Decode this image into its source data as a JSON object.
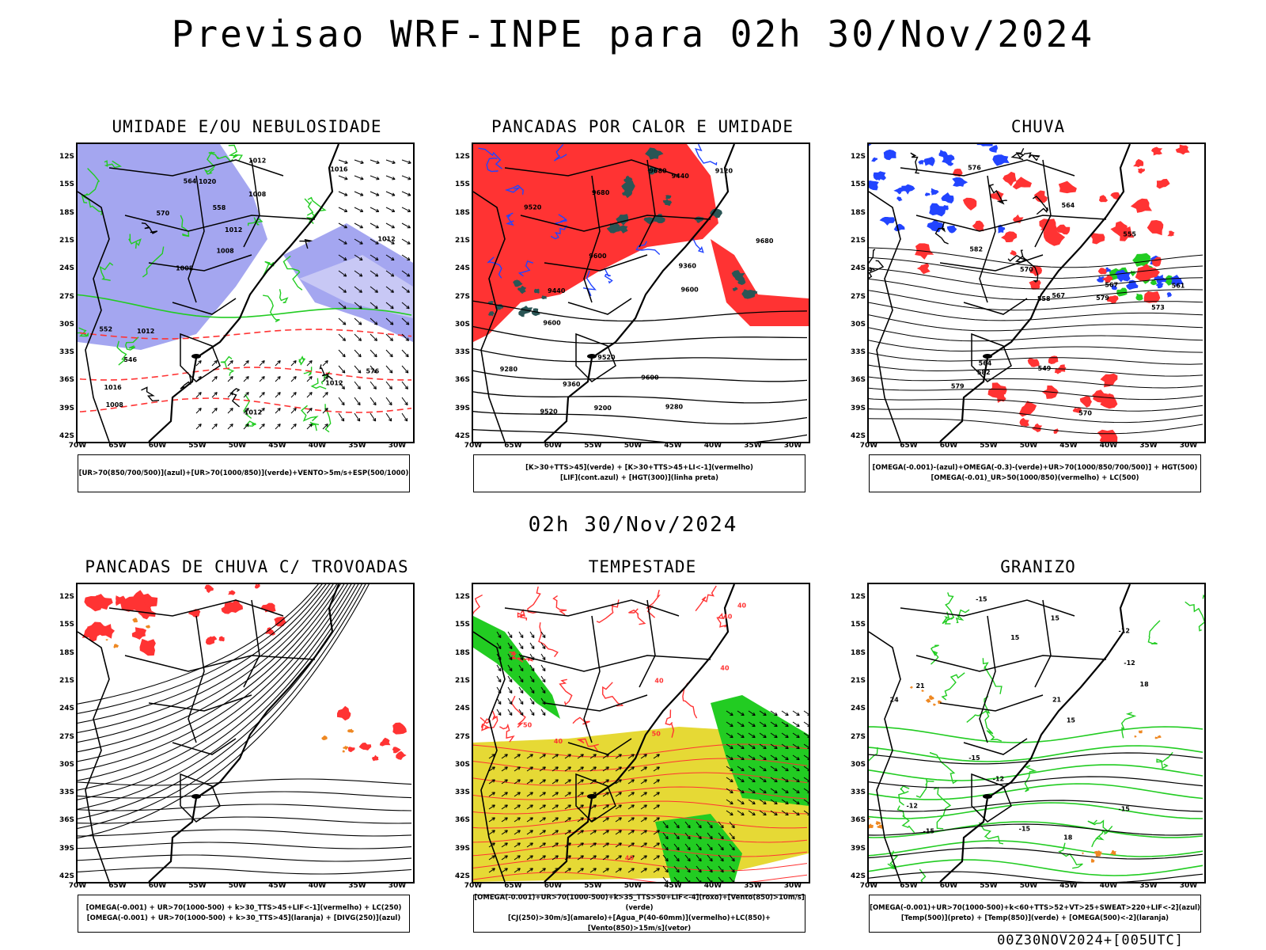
{
  "page": {
    "title": "Previsao WRF-INPE  para 02h 30/Nov/2024",
    "subtitle": "02h 30/Nov/2024",
    "footer": "00Z30NOV2024+[005UTC]"
  },
  "axes": {
    "lat_labels": [
      "12S",
      "15S",
      "18S",
      "21S",
      "24S",
      "27S",
      "30S",
      "33S",
      "36S",
      "39S",
      "42S"
    ],
    "lon_labels": [
      "70W",
      "65W",
      "60W",
      "55W",
      "50W",
      "45W",
      "40W",
      "35W",
      "30W"
    ]
  },
  "colors": {
    "green": "#22cc22",
    "red": "#ff3333",
    "blue": "#2244ff",
    "lavender": "#a4a6f0",
    "darkteal": "#2a5555",
    "yellow": "#e6d935",
    "orange": "#ee8822",
    "black": "#000000"
  },
  "panels": [
    {
      "title": "UMIDADE E/OU NEBULOSIDADE",
      "legend": [
        "[UR>70(850/700/500)](azul)+[UR>70(1000/850)](verde)+VENTO>5m/s+ESP(500/1000)"
      ],
      "contour_labels": [
        "1012",
        "1012",
        "1012",
        "1020",
        "1012",
        "1008",
        "1008",
        "1012",
        "1012",
        "1016",
        "1008",
        "1008",
        "1016",
        "564",
        "558",
        "552",
        "570",
        "576",
        "546"
      ]
    },
    {
      "title": "PANCADAS POR CALOR E UMIDADE",
      "legend": [
        "[K>30+TTS>45](verde) + [K>30+TTS>45+LI<-1](vermelho)",
        "[LIF](cont.azul) + [HGT(300)](linha preta)"
      ],
      "contour_labels": [
        "9680",
        "9680",
        "9680",
        "9600",
        "9600",
        "9520",
        "9600",
        "9520",
        "9440",
        "9360",
        "9280",
        "9360",
        "9440",
        "9280",
        "9120",
        "9200",
        "9520",
        "9600"
      ]
    },
    {
      "title": "CHUVA",
      "legend": [
        "[OMEGA(-0.001)-(azul)+OMEGA(-0.3)-(verde)+UR>70(1000/850/700/500)] + HGT(500)",
        "[OMEGA(-0.01)_UR>50(1000/850)(vermelho) + LC(500)"
      ],
      "contour_labels": [
        "582",
        "582",
        "579",
        "576",
        "573",
        "570",
        "567",
        "564",
        "561",
        "558",
        "555",
        "549",
        "570",
        "567",
        "564",
        "579"
      ]
    },
    {
      "title": "PANCADAS DE CHUVA C/ TROVOADAS",
      "legend": [
        "[OMEGA(-0.001) + UR>70(1000-500) + k>30_TTS>45+LIF<-1](vermelho) + LC(250)",
        "[OMEGA(-0.001) + UR>70(1000-500) + k>30_TTS>45](laranja) + [DIVG(250)](azul)"
      ],
      "contour_labels": []
    },
    {
      "title": "TEMPESTADE",
      "legend": [
        "[OMEGA(-0.001)+UR>70(1000-500)+k>35_TTS>50+LIF<-4](roxo)+[Vento(850)>10m/s](verde)",
        "[CJ(250)>30m/s](amarelo)+[Agua_P(40-60mm)](vermelho)+LC(850)+[Vento(850)>15m/s](vetor)"
      ],
      "contour_labels": [
        "40",
        "40",
        "50",
        "40",
        "50",
        "40",
        "40",
        "40"
      ]
    },
    {
      "title": "GRANIZO",
      "legend": [
        "[OMEGA(-0.001)+UR>70(1000-500)+k<60+TTS>52+VT>25+SWEAT>220+LIF<-2](azul)",
        "[Temp(500)](preto) + [Temp(850)](verde) + [OMEGA(500)<-2](laranja)"
      ],
      "contour_labels": [
        "-12",
        "-15",
        "-12",
        "-12",
        "-15",
        "-15",
        "-15",
        "-12",
        "-15",
        "15",
        "15",
        "18",
        "18",
        "21",
        "21",
        "24",
        "15"
      ]
    }
  ]
}
